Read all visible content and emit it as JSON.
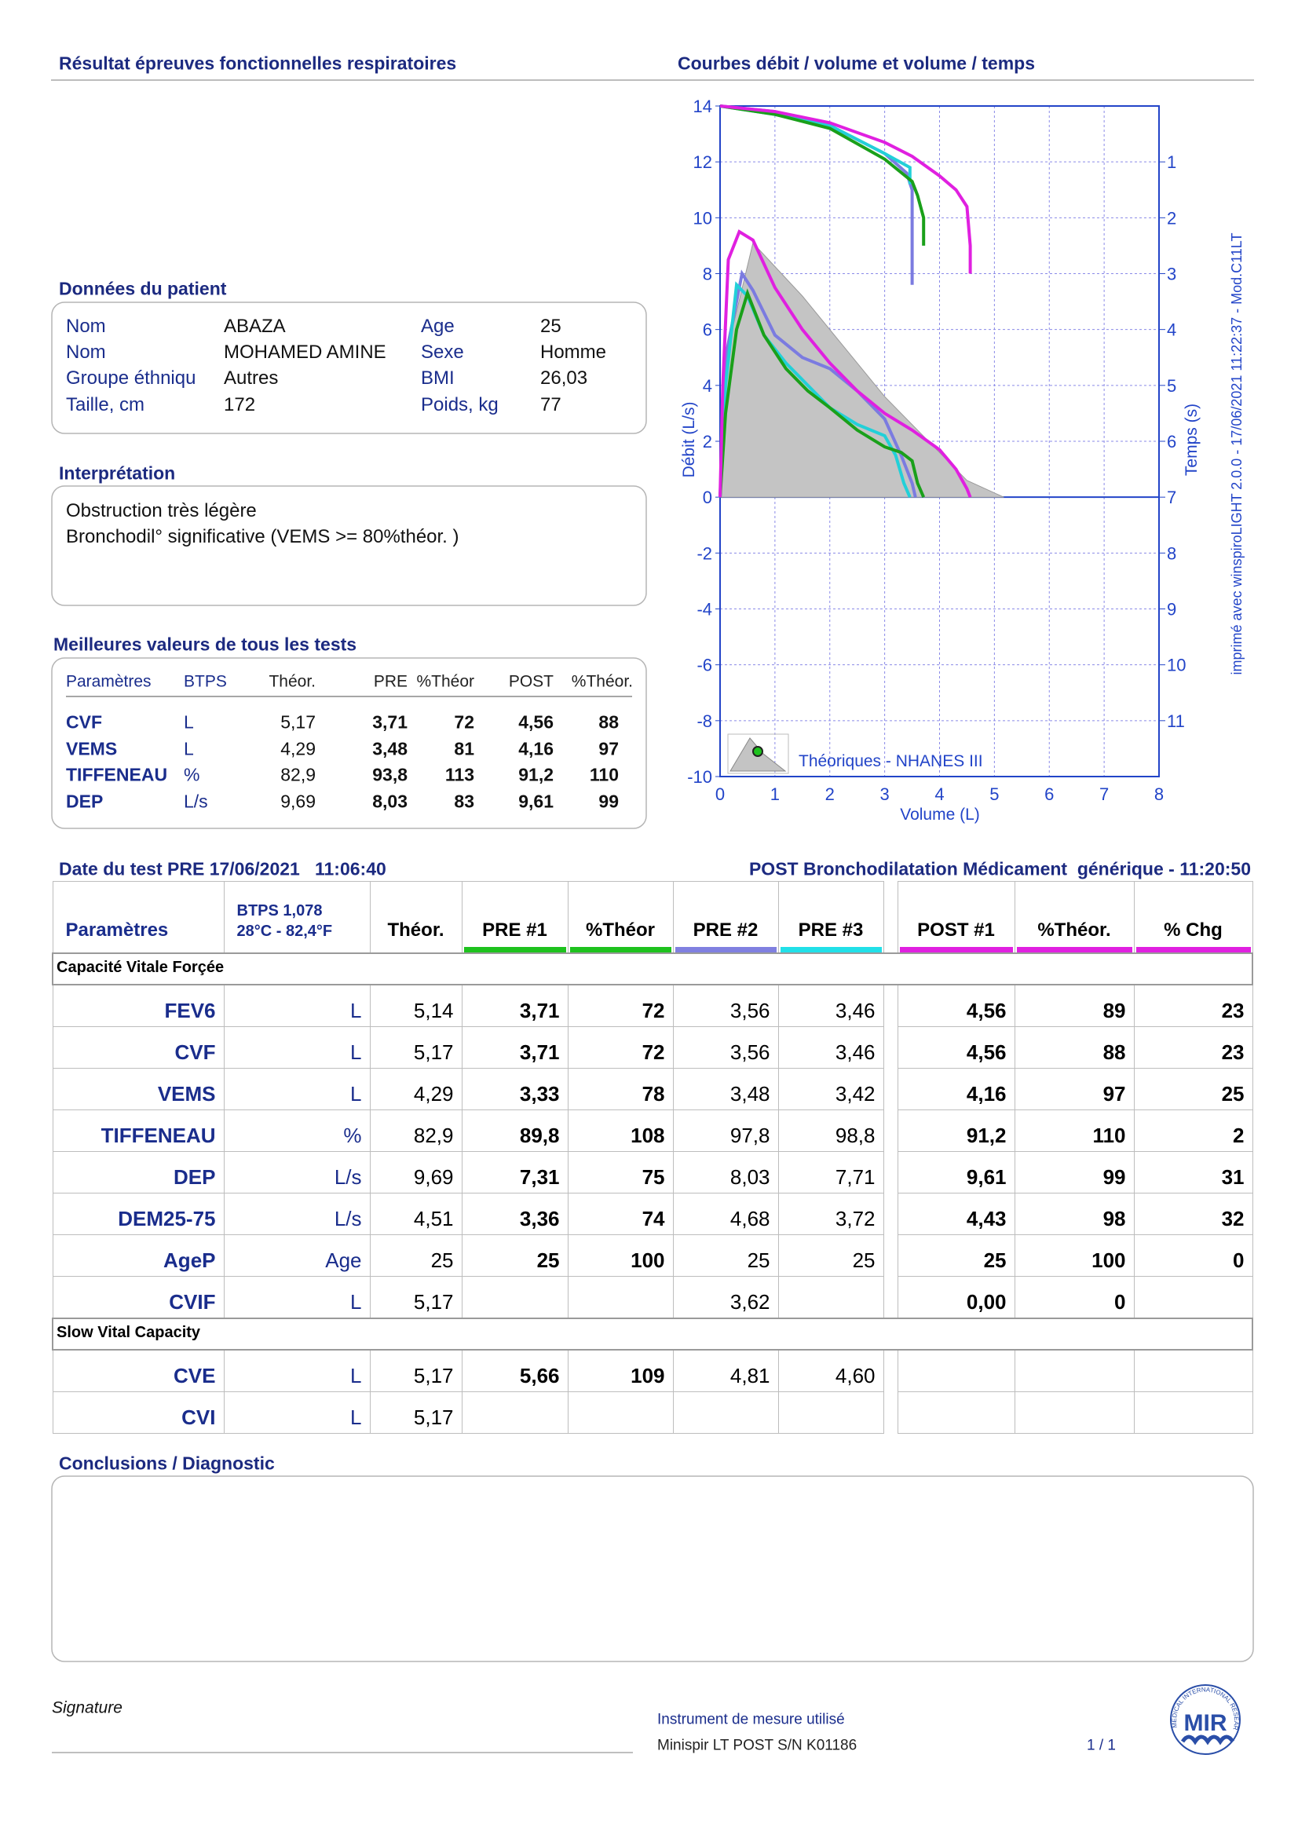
{
  "header": {
    "title": "Résultat épreuves fonctionnelles respiratoires"
  },
  "chart": {
    "type": "line",
    "title": "Courbes débit / volume et volume / temps",
    "x_label": "Volume (L)",
    "y_label": "Débit (L/s)",
    "y2_label": "Temps (s)",
    "xlim": [
      0,
      8
    ],
    "xticks": [
      0,
      1,
      2,
      3,
      4,
      5,
      6,
      7,
      8
    ],
    "ylim": [
      -10,
      14
    ],
    "yticks": [
      -10,
      -8,
      -6,
      -4,
      -2,
      0,
      2,
      4,
      6,
      8,
      10,
      12,
      14
    ],
    "y2lim": [
      12,
      0
    ],
    "y2ticks": [
      1,
      2,
      3,
      4,
      5,
      6,
      7,
      8,
      9,
      10,
      11
    ],
    "grid": true,
    "side_note": "imprimé avec winspiroLIGHT 2.0.0 - 17/06/2021 11:22:37 - Mod.C11LT",
    "series": [
      {
        "name": "Théoriques - NHANES III",
        "kind": "area",
        "color": "#c4c4c4",
        "x": [
          0,
          0.1,
          0.6,
          1.5,
          3,
          4.5,
          5.17
        ],
        "values": [
          0,
          5,
          9.1,
          7.2,
          3.6,
          0.6,
          0
        ]
      },
      {
        "color": "#7b7be0",
        "x": [
          0,
          0.1,
          0.4,
          0.6,
          1,
          1.5,
          2,
          2.5,
          3,
          3.3,
          3.5,
          3.56
        ],
        "values": [
          0,
          5,
          8,
          7.4,
          5.8,
          5,
          4.6,
          3.8,
          2.8,
          1.5,
          0.5,
          0
        ]
      },
      {
        "color": "#22d0d8",
        "x": [
          0,
          0.1,
          0.3,
          0.5,
          0.8,
          1.2,
          1.6,
          2,
          2.5,
          3,
          3.2,
          3.35,
          3.46
        ],
        "values": [
          0,
          4,
          7.6,
          7.2,
          5.8,
          4.8,
          4,
          3.2,
          2.6,
          2.2,
          1.5,
          0.5,
          0
        ]
      },
      {
        "color": "#1aa01a",
        "x": [
          0,
          0.1,
          0.3,
          0.5,
          0.8,
          1.2,
          1.6,
          2,
          2.5,
          3,
          3.3,
          3.5,
          3.6,
          3.71
        ],
        "values": [
          0,
          3,
          6,
          7.3,
          5.8,
          4.6,
          3.8,
          3.2,
          2.4,
          1.8,
          1.6,
          1.3,
          0.5,
          0
        ]
      },
      {
        "color": "#e020e0",
        "x": [
          0,
          0.05,
          0.15,
          0.35,
          0.6,
          1,
          1.5,
          2,
          2.5,
          3,
          3.5,
          4,
          4.3,
          4.5,
          4.56
        ],
        "values": [
          0,
          4,
          8.5,
          9.5,
          9.2,
          7.5,
          6,
          4.8,
          3.8,
          3,
          2.4,
          1.7,
          1,
          0.3,
          0
        ]
      },
      {
        "color": "#7b7be0",
        "axis": "y2",
        "x": [
          0,
          1,
          2,
          3,
          3.4,
          3.5,
          3.5
        ],
        "values": [
          0,
          0.1,
          0.35,
          0.85,
          1.2,
          1.5,
          3.2
        ]
      },
      {
        "color": "#22d0d8",
        "axis": "y2",
        "x": [
          0,
          1,
          2,
          3,
          3.46,
          3.46
        ],
        "values": [
          0,
          0.15,
          0.35,
          0.85,
          1.1,
          1.4
        ]
      },
      {
        "color": "#1aa01a",
        "axis": "y2",
        "x": [
          0,
          1,
          2,
          3,
          3.5,
          3.6,
          3.71,
          3.71
        ],
        "values": [
          0,
          0.15,
          0.4,
          0.95,
          1.35,
          1.6,
          2,
          2.5
        ]
      },
      {
        "color": "#e020e0",
        "axis": "y2",
        "x": [
          0,
          1,
          2,
          3,
          3.5,
          4,
          4.3,
          4.5,
          4.56,
          4.56
        ],
        "values": [
          0,
          0.1,
          0.3,
          0.65,
          0.9,
          1.25,
          1.5,
          1.8,
          2.5,
          3
        ]
      }
    ]
  },
  "patient": {
    "title": "Données du patient",
    "rows": [
      [
        "Nom",
        "ABAZA",
        "Age",
        "25"
      ],
      [
        "Nom",
        "MOHAMED AMINE",
        "Sexe",
        "Homme"
      ],
      [
        "Groupe éthniqu",
        "Autres",
        "BMI",
        "26,03"
      ],
      [
        "Taille, cm",
        "172",
        "Poids, kg",
        "77"
      ]
    ]
  },
  "interpretation": {
    "title": "Interprétation",
    "lines": [
      "Obstruction très légère",
      "Bronchodil° significative (VEMS >= 80%théor. )"
    ]
  },
  "best": {
    "title": "Meilleures valeurs de tous les tests",
    "columns": [
      "Paramètres",
      "BTPS",
      "Théor.",
      "PRE",
      "%Théor",
      "POST",
      "%Théor."
    ],
    "rows": [
      [
        "CVF",
        "L",
        "5,17",
        "3,71",
        "72",
        "4,56",
        "88"
      ],
      [
        "VEMS",
        "L",
        "4,29",
        "3,48",
        "81",
        "4,16",
        "97"
      ],
      [
        "TIFFENEAU",
        "%",
        "82,9",
        "93,8",
        "113",
        "91,2",
        "110"
      ],
      [
        "DEP",
        "L/s",
        "9,69",
        "8,03",
        "83",
        "9,61",
        "99"
      ]
    ]
  },
  "test_table": {
    "header_left": "Date du test PRE 17/06/2021   11:06:40",
    "header_right": "POST Bronchodilatation Médicament  générique - 11:20:50",
    "columns": [
      "Paramètres",
      [
        "BTPS 1,078",
        "28°C - 82,4°F"
      ],
      "Théor.",
      "PRE #1",
      "%Théor",
      "PRE #2",
      "PRE #3",
      "POST #1",
      "%Théor.",
      "% Chg"
    ],
    "column_colors": [
      null,
      null,
      null,
      "#1ec21e",
      "#1ec21e",
      "#8080e0",
      "#22e0e8",
      "#e020e0",
      "#e020e0",
      "#e020e0"
    ],
    "sections": [
      {
        "title": "Capacité Vitale Forçée",
        "rows": [
          [
            "FEV6",
            "L",
            "5,14",
            "3,71",
            "72",
            "3,56",
            "3,46",
            "4,56",
            "89",
            "23"
          ],
          [
            "CVF",
            "L",
            "5,17",
            "3,71",
            "72",
            "3,56",
            "3,46",
            "4,56",
            "88",
            "23"
          ],
          [
            "VEMS",
            "L",
            "4,29",
            "3,33",
            "78",
            "3,48",
            "3,42",
            "4,16",
            "97",
            "25"
          ],
          [
            "TIFFENEAU",
            "%",
            "82,9",
            "89,8",
            "108",
            "97,8",
            "98,8",
            "91,2",
            "110",
            "2"
          ],
          [
            "DEP",
            "L/s",
            "9,69",
            "7,31",
            "75",
            "8,03",
            "7,71",
            "9,61",
            "99",
            "31"
          ],
          [
            "DEM25-75",
            "L/s",
            "4,51",
            "3,36",
            "74",
            "4,68",
            "3,72",
            "4,43",
            "98",
            "32"
          ],
          [
            "AgeP",
            "Age",
            "25",
            "25",
            "100",
            "25",
            "25",
            "25",
            "100",
            "0"
          ],
          [
            "CVIF",
            "L",
            "5,17",
            null,
            null,
            "3,62",
            null,
            "0,00",
            "0",
            null
          ]
        ]
      },
      {
        "title": "Slow Vital Capacity",
        "rows": [
          [
            "CVE",
            "L",
            "5,17",
            "5,66",
            "109",
            "4,81",
            "4,60",
            null,
            null,
            null
          ],
          [
            "CVI",
            "L",
            "5,17",
            null,
            null,
            null,
            null,
            null,
            null,
            null
          ]
        ]
      }
    ]
  },
  "conclusions": {
    "title": "Conclusions / Diagnostic"
  },
  "signature": "Signature",
  "instrument": {
    "label": "Instrument de mesure utilisé",
    "device": "Minispir LT POST S/N K01186"
  },
  "page_number": "1 / 1",
  "logo": {
    "brand": "MIR",
    "ring": "MEDICAL INTERNATIONAL RESEARCH"
  }
}
